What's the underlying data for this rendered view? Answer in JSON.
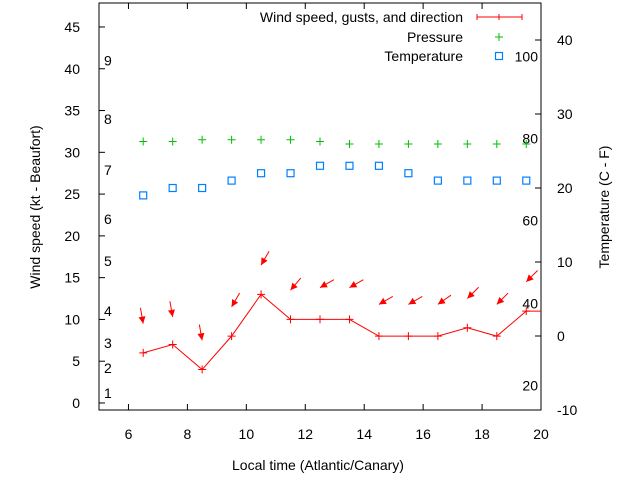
{
  "chart_data": {
    "type": "line",
    "xlabel": "Local time (Atlantic/Canary)",
    "ylabel": "Wind speed (kt - Beaufort)",
    "y2label": "Temperature (C - F)",
    "xlim": [
      5,
      20
    ],
    "ylim": [
      -0.84,
      47.87
    ],
    "y2lim": [
      -10,
      45
    ],
    "xticks": [
      "6",
      "8",
      "10",
      "12",
      "14",
      "16",
      "18",
      "20"
    ],
    "yticks": [
      "0",
      "5",
      "10",
      "15",
      "20",
      "25",
      "30",
      "35",
      "40",
      "45"
    ],
    "y2ticks": [
      "-10",
      "0",
      "10",
      "20",
      "30",
      "40"
    ],
    "legend_position": "top-right",
    "legend": [
      "Wind speed, gusts, and direction",
      "Pressure",
      "Temperature"
    ],
    "beaufort_labels": [
      {
        "label": "1",
        "y": 1.2
      },
      {
        "label": "2",
        "y": 4.2
      },
      {
        "label": "3",
        "y": 7.2
      },
      {
        "label": "4",
        "y": 11
      },
      {
        "label": "5",
        "y": 17
      },
      {
        "label": "6",
        "y": 22
      },
      {
        "label": "7",
        "y": 27.9
      },
      {
        "label": "8",
        "y": 34
      },
      {
        "label": "9",
        "y": 41
      }
    ],
    "fahrenheit_labels": [
      {
        "label": "20",
        "y2": -6.7
      },
      {
        "label": "40",
        "y2": 4.4
      },
      {
        "label": "60",
        "y2": 15.6
      },
      {
        "label": "80",
        "y2": 26.7
      },
      {
        "label": "100",
        "y2": 37.8
      }
    ],
    "x": [
      6.5,
      7.5,
      8.5,
      9.5,
      10.5,
      11.5,
      12.5,
      13.5,
      14.5,
      15.5,
      16.5,
      17.5,
      18.5,
      19.5
    ],
    "series": [
      {
        "name": "Wind speed",
        "axis": "y",
        "color": "#ff0000",
        "values": [
          6,
          7,
          4,
          8,
          13,
          10,
          10,
          10,
          8,
          8,
          8,
          9,
          8,
          11
        ]
      },
      {
        "name": "Gusts",
        "axis": "y",
        "color": "#ff0000",
        "values": [
          9.5,
          10.3,
          7.5,
          11.5,
          16.5,
          13.5,
          13.8,
          13.8,
          11.8,
          11.8,
          11.8,
          12.5,
          11.8,
          14.5
        ],
        "direction_deg": [
          350,
          350,
          350,
          30,
          30,
          40,
          60,
          60,
          60,
          60,
          55,
          45,
          45,
          45
        ]
      },
      {
        "name": "Pressure",
        "axis": "y",
        "color": "#00c000",
        "values": [
          31.3,
          31.3,
          31.5,
          31.5,
          31.5,
          31.5,
          31.3,
          31.0,
          31.0,
          31.0,
          31.0,
          31.0,
          31.0,
          31.0
        ]
      },
      {
        "name": "Temperature",
        "axis": "y2",
        "color": "#0080ff",
        "values": [
          19,
          20,
          20,
          21,
          22,
          22,
          23,
          23,
          23,
          22,
          21,
          21,
          21,
          21
        ]
      }
    ]
  }
}
